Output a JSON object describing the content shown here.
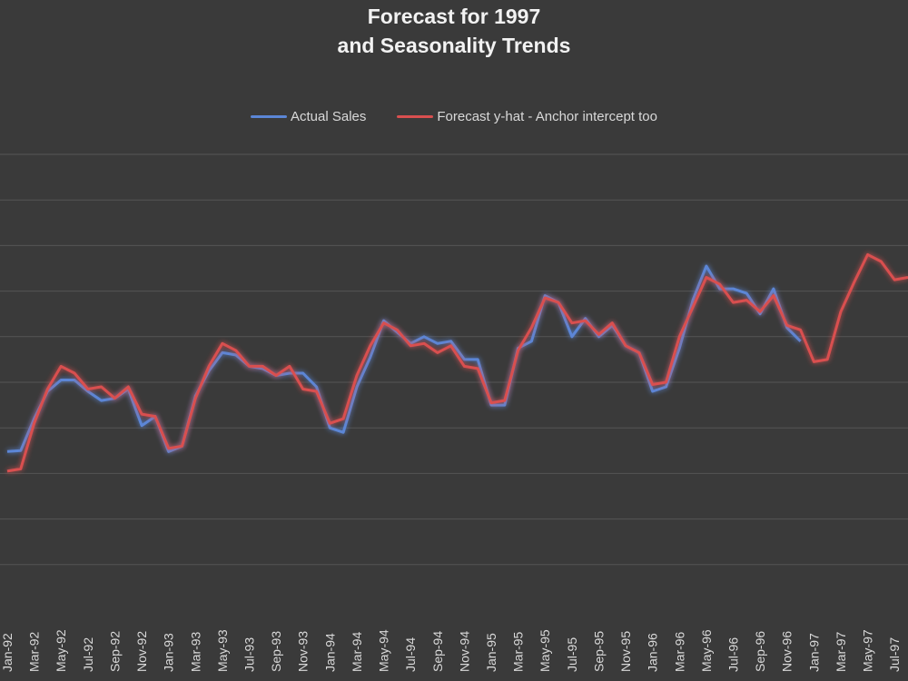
{
  "chart_data": {
    "type": "line",
    "title_line1": "Forecast for 1997",
    "title_line2": "and Seasonality Trends",
    "xlabel": "",
    "ylabel": "",
    "ylim": [
      0,
      10
    ],
    "y_gridlines": [
      1,
      2,
      3,
      4,
      5,
      6,
      7,
      8,
      9,
      10
    ],
    "y_tick_labels_shown": false,
    "grid": "horizontal",
    "legend_position": "top",
    "x_tick_labels": [
      "Jan-92",
      "Mar-92",
      "May-92",
      "Jul-92",
      "Sep-92",
      "Nov-92",
      "Jan-93",
      "Mar-93",
      "May-93",
      "Jul-93",
      "Sep-93",
      "Nov-93",
      "Jan-94",
      "Mar-94",
      "May-94",
      "Jul-94",
      "Sep-94",
      "Nov-94",
      "Jan-95",
      "Mar-95",
      "May-95",
      "Jul-95",
      "Sep-95",
      "Nov-95",
      "Jan-96",
      "Mar-96",
      "May-96",
      "Jul-96",
      "Sep-96",
      "Nov-96",
      "Jan-97",
      "Mar-97",
      "May-97",
      "Jul-97"
    ],
    "series": [
      {
        "name": "Actual Sales",
        "color": "#5b86d6",
        "values": [
          3.48,
          3.5,
          4.2,
          4.8,
          5.05,
          5.05,
          4.8,
          4.6,
          4.65,
          4.85,
          4.05,
          4.25,
          3.48,
          3.6,
          4.7,
          5.25,
          5.65,
          5.6,
          5.35,
          5.3,
          5.15,
          5.2,
          5.2,
          4.9,
          4.0,
          3.9,
          4.9,
          5.55,
          6.35,
          6.1,
          5.85,
          6.0,
          5.85,
          5.9,
          5.5,
          5.5,
          4.5,
          4.5,
          5.75,
          5.9,
          6.9,
          6.75,
          6.0,
          6.4,
          6.0,
          6.25,
          5.8,
          5.65,
          4.8,
          4.9,
          5.75,
          6.8,
          7.55,
          7.05,
          7.05,
          6.95,
          6.5,
          7.05,
          6.2,
          5.9
        ]
      },
      {
        "name": "Forecast y-hat - Anchor intercept too",
        "color": "#d94f4f",
        "values": [
          3.05,
          3.1,
          4.1,
          4.85,
          5.35,
          5.2,
          4.85,
          4.9,
          4.65,
          4.9,
          4.3,
          4.25,
          3.55,
          3.6,
          4.65,
          5.35,
          5.85,
          5.7,
          5.35,
          5.35,
          5.15,
          5.35,
          4.85,
          4.8,
          4.1,
          4.2,
          5.15,
          5.8,
          6.3,
          6.15,
          5.8,
          5.85,
          5.65,
          5.8,
          5.35,
          5.3,
          4.55,
          4.6,
          5.7,
          6.2,
          6.85,
          6.75,
          6.3,
          6.35,
          6.05,
          6.3,
          5.8,
          5.65,
          4.95,
          5.0,
          6.0,
          6.65,
          7.3,
          7.15,
          6.75,
          6.8,
          6.55,
          6.9,
          6.25,
          6.15,
          5.45,
          5.5,
          6.55,
          7.2,
          7.8,
          7.65,
          7.25,
          7.3
        ]
      }
    ]
  }
}
